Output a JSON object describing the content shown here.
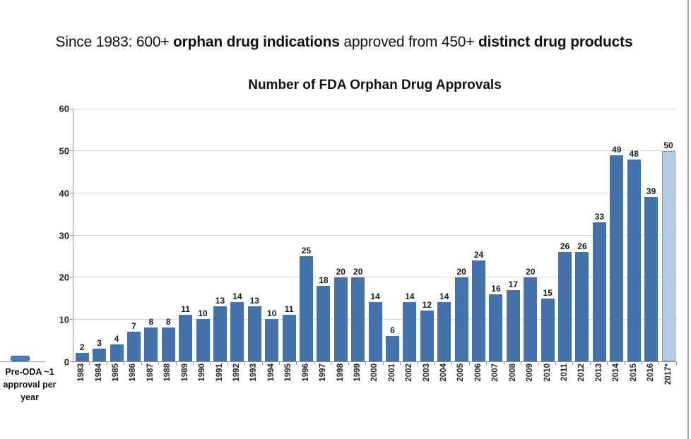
{
  "headline": {
    "seg1": "Since 1983: 600+ ",
    "seg2": "orphan drug indications",
    "seg3": " approved from 450+ ",
    "seg4": "distinct drug products"
  },
  "annotation": {
    "line1": "Pre-ODA ~1",
    "line2": "approval per",
    "line3": "year",
    "marker_value": 1
  },
  "chart_data": {
    "type": "bar",
    "title": "Number of FDA Orphan Drug Approvals",
    "categories": [
      "1983",
      "1984",
      "1985",
      "1986",
      "1987",
      "1988",
      "1989",
      "1990",
      "1991",
      "1992",
      "1993",
      "1994",
      "1995",
      "1996",
      "1997",
      "1998",
      "1999",
      "2000",
      "2001",
      "2002",
      "2003",
      "2004",
      "2005",
      "2006",
      "2007",
      "2008",
      "2009",
      "2010",
      "2011",
      "2012",
      "2013",
      "2014",
      "2015",
      "2016",
      "2017*"
    ],
    "values": [
      2,
      3,
      4,
      7,
      8,
      8,
      11,
      10,
      13,
      14,
      13,
      10,
      11,
      25,
      18,
      20,
      20,
      14,
      6,
      14,
      12,
      14,
      20,
      24,
      16,
      17,
      20,
      15,
      26,
      26,
      33,
      49,
      48,
      39,
      50
    ],
    "xlabel": "",
    "ylabel": "",
    "ylim": [
      0,
      60
    ],
    "yticks": [
      0,
      10,
      20,
      30,
      40,
      50,
      60
    ],
    "grid": true,
    "legend": false,
    "bar_color": "#4472ac",
    "highlight_category": "2017*",
    "highlight_fill": "#b6cbe8",
    "highlight_border": "#7a9cc9",
    "data_labels": true,
    "x_label_rotation_deg": -90
  }
}
